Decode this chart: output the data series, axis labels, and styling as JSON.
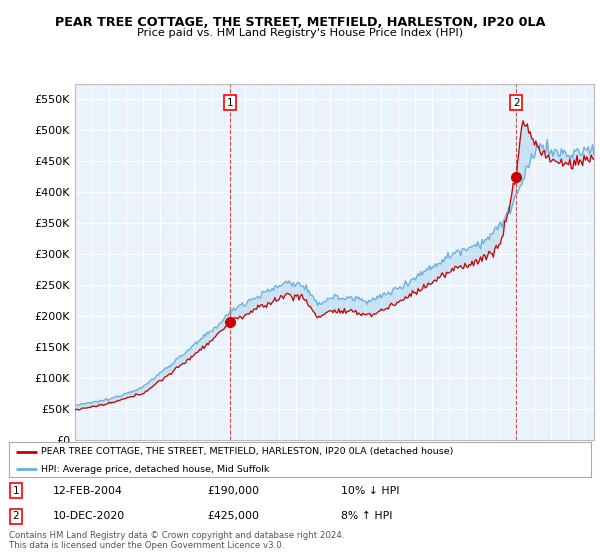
{
  "title": "PEAR TREE COTTAGE, THE STREET, METFIELD, HARLESTON, IP20 0LA",
  "subtitle": "Price paid vs. HM Land Registry's House Price Index (HPI)",
  "ylabel_ticks": [
    "£0",
    "£50K",
    "£100K",
    "£150K",
    "£200K",
    "£250K",
    "£300K",
    "£350K",
    "£400K",
    "£450K",
    "£500K",
    "£550K"
  ],
  "ytick_values": [
    0,
    50000,
    100000,
    150000,
    200000,
    250000,
    300000,
    350000,
    400000,
    450000,
    500000,
    550000
  ],
  "xmin": 1995.0,
  "xmax": 2025.5,
  "ymin": 0,
  "ymax": 575000,
  "hpi_color": "#6ab0de",
  "price_color": "#cc0000",
  "sale1_year": 2004.12,
  "sale1_price": 190000,
  "sale2_year": 2020.92,
  "sale2_price": 425000,
  "legend_label1": "PEAR TREE COTTAGE, THE STREET, METFIELD, HARLESTON, IP20 0LA (detached house)",
  "legend_label2": "HPI: Average price, detached house, Mid Suffolk",
  "note1_label": "1",
  "note1_date": "12-FEB-2004",
  "note1_price": "£190,000",
  "note1_rel": "10% ↓ HPI",
  "note2_label": "2",
  "note2_date": "10-DEC-2020",
  "note2_price": "£425,000",
  "note2_rel": "8% ↑ HPI",
  "footer": "Contains HM Land Registry data © Crown copyright and database right 2024.\nThis data is licensed under the Open Government Licence v3.0.",
  "bg_color": "#ffffff",
  "plot_bg_color": "#eaf3fb",
  "grid_color": "#ffffff"
}
